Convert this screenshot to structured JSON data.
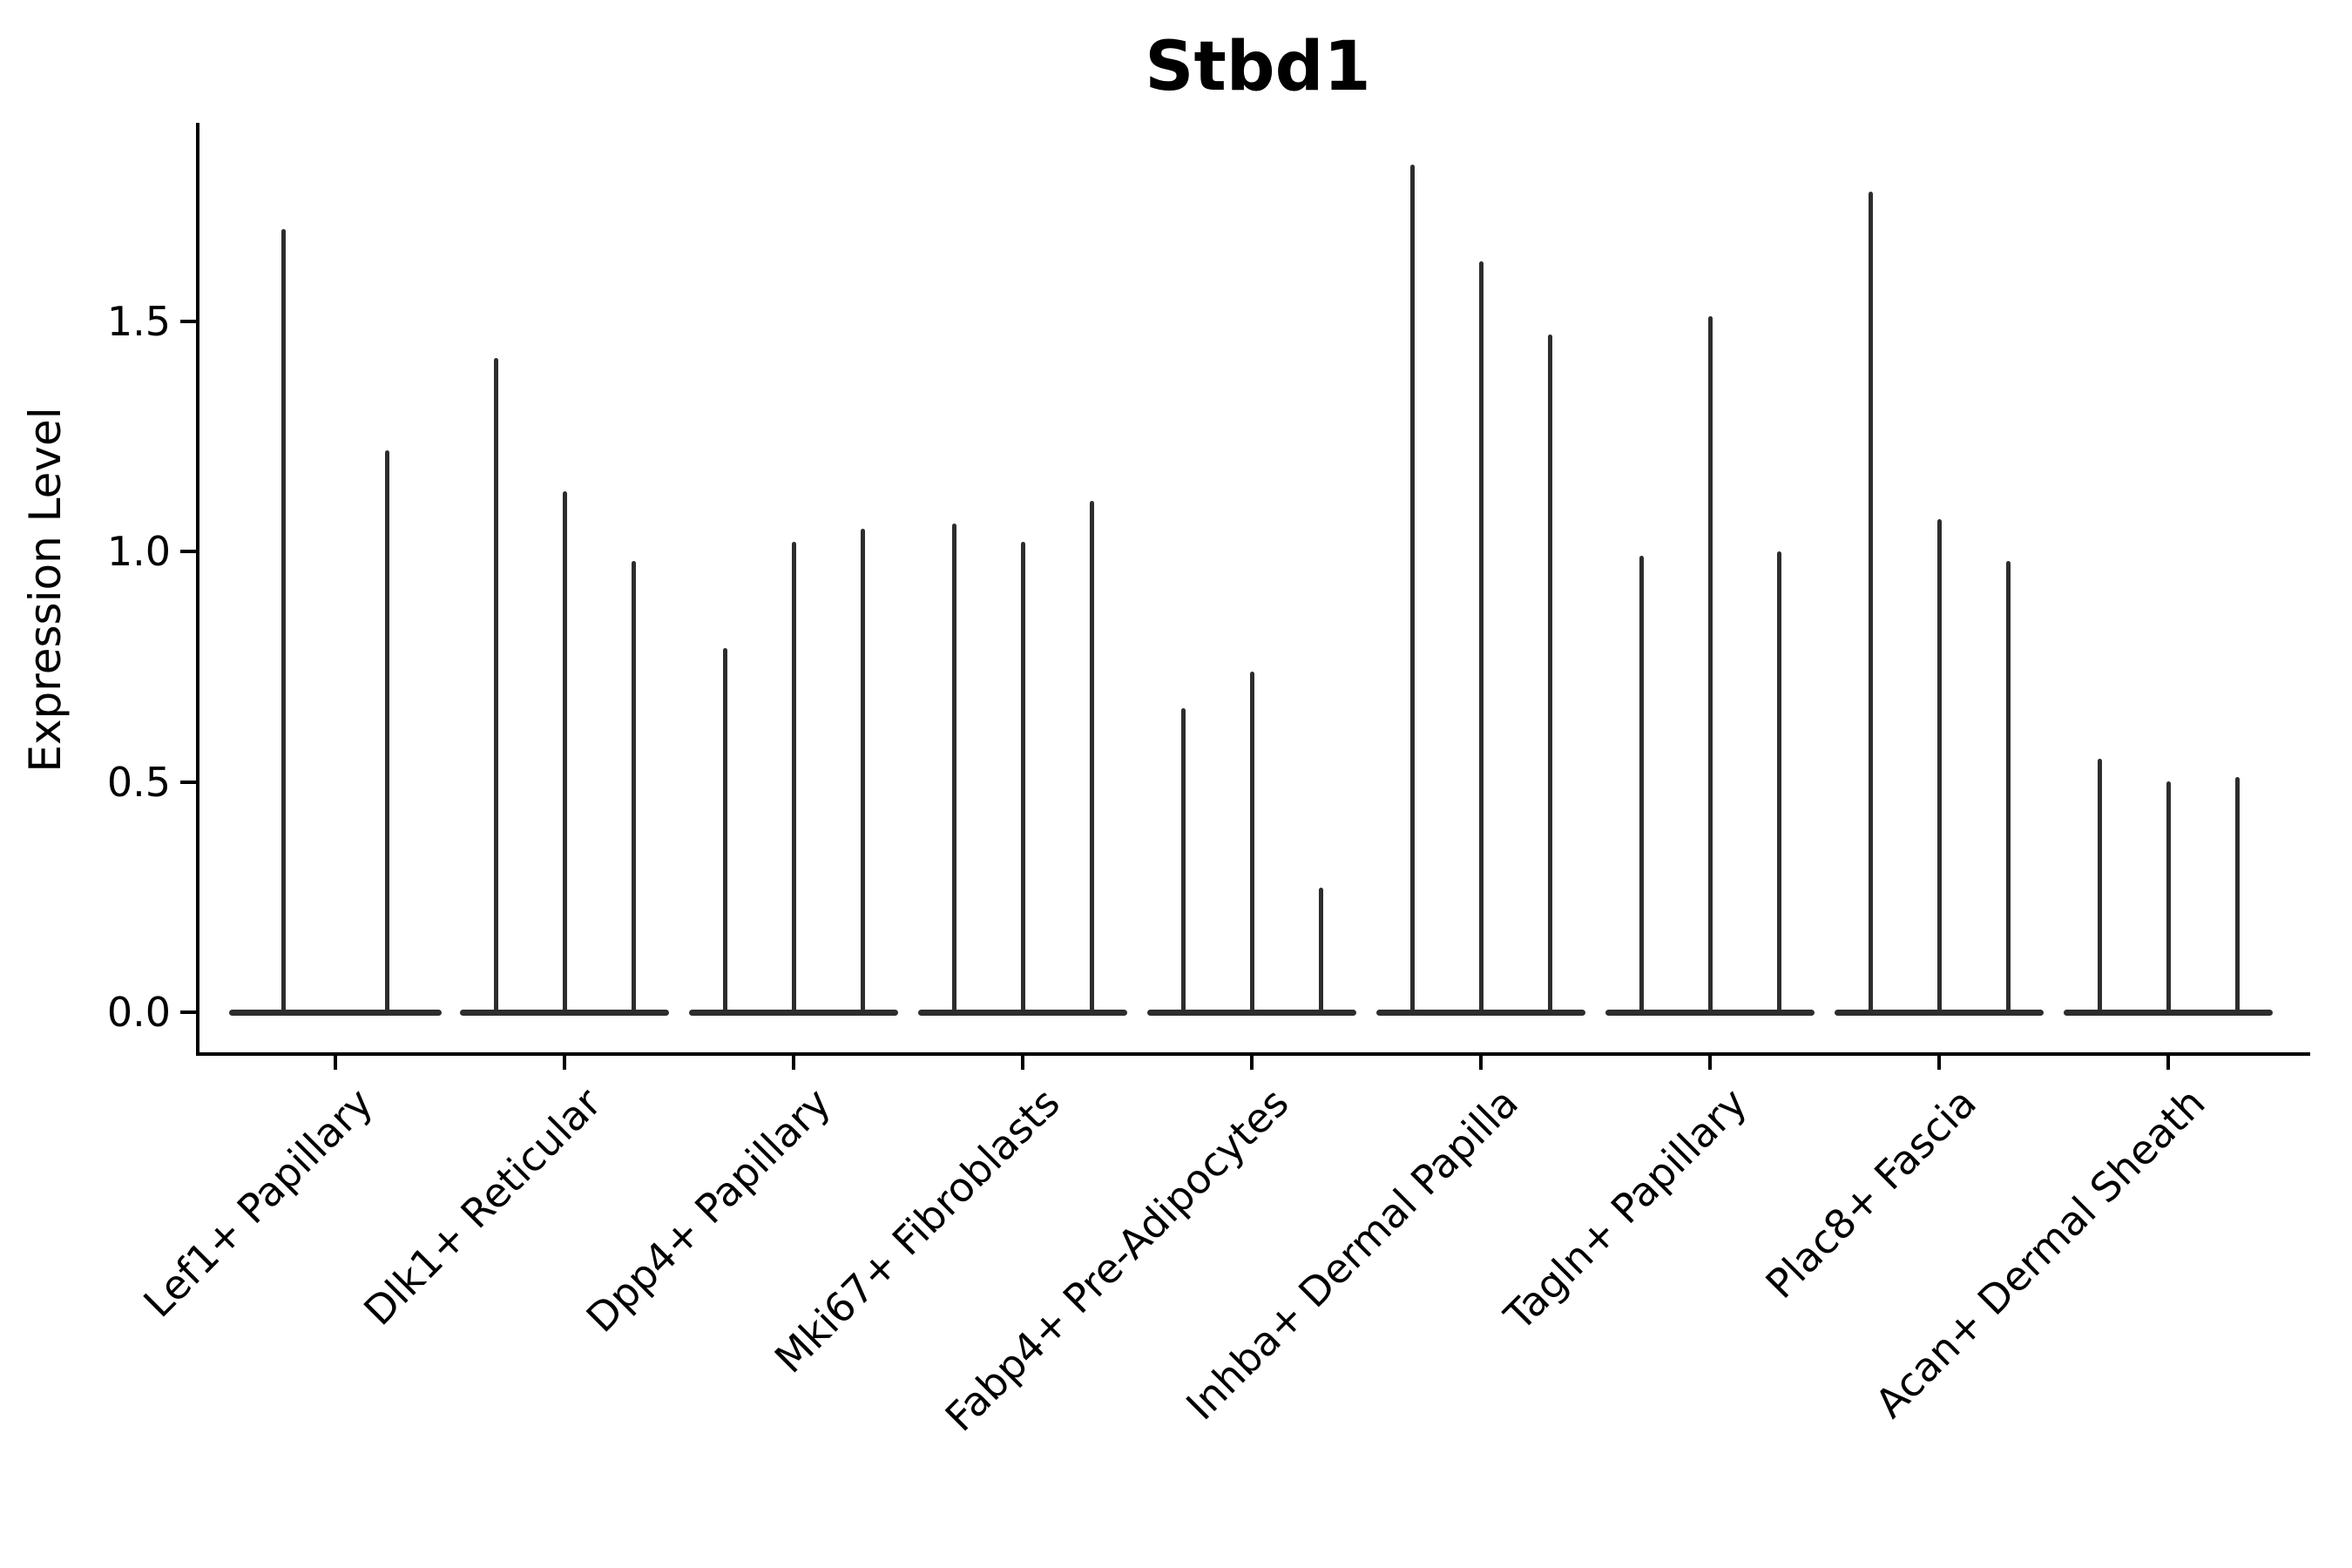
{
  "figure": {
    "title": "Stbd1",
    "y_axis": {
      "label": "Expression Level",
      "tick_labels": [
        "0.0",
        "0.5",
        "1.0",
        "1.5"
      ]
    }
  },
  "chart_data": {
    "type": "violin",
    "title": "Stbd1",
    "xlabel": "",
    "ylabel": "Expression Level",
    "yticks": [
      0.0,
      0.5,
      1.0,
      1.5
    ],
    "ytick_labels": [
      "0.0",
      "0.5",
      "1.0",
      "1.5"
    ],
    "ylim": [
      -0.09,
      1.93
    ],
    "grid": false,
    "legend": null,
    "ink_color": "#000000",
    "violin_color": "#2d2d2d",
    "violin_style": "Each violin has nearly all density at 0 (flat horizontal bar) with a single thin vertical spike rising to its maximum expression value; violins within a category sit side by side and their zero-bars merge.",
    "categories": [
      "Lef1+ Papillary",
      "Dlk1+ Reticular",
      "Dpp4+ Papillary",
      "Mki67+ Fibroblasts",
      "Fabp4+ Pre-Adipocytes",
      "Inhba+ Dermal Papilla",
      "Tagln+ Papillary",
      "Plac8+ Fascia",
      "Acan+ Dermal Sheath"
    ],
    "series": [
      {
        "category": "Lef1+ Papillary",
        "violin_peaks": [
          1.7,
          1.22
        ]
      },
      {
        "category": "Dlk1+ Reticular",
        "violin_peaks": [
          1.42,
          1.13,
          0.98
        ]
      },
      {
        "category": "Dpp4+ Papillary",
        "violin_peaks": [
          0.79,
          1.02,
          1.05
        ]
      },
      {
        "category": "Mki67+ Fibroblasts",
        "violin_peaks": [
          1.06,
          1.02,
          1.11
        ]
      },
      {
        "category": "Fabp4+ Pre-Adipocytes",
        "violin_peaks": [
          0.66,
          0.74,
          0.27
        ]
      },
      {
        "category": "Inhba+ Dermal Papilla",
        "violin_peaks": [
          1.84,
          1.63,
          1.47
        ]
      },
      {
        "category": "Tagln+ Papillary",
        "violin_peaks": [
          0.99,
          1.51,
          1.0
        ]
      },
      {
        "category": "Plac8+ Fascia",
        "violin_peaks": [
          1.78,
          1.07,
          0.98
        ]
      },
      {
        "category": "Acan+ Dermal Sheath",
        "violin_peaks": [
          0.55,
          0.5,
          0.51
        ]
      }
    ]
  }
}
